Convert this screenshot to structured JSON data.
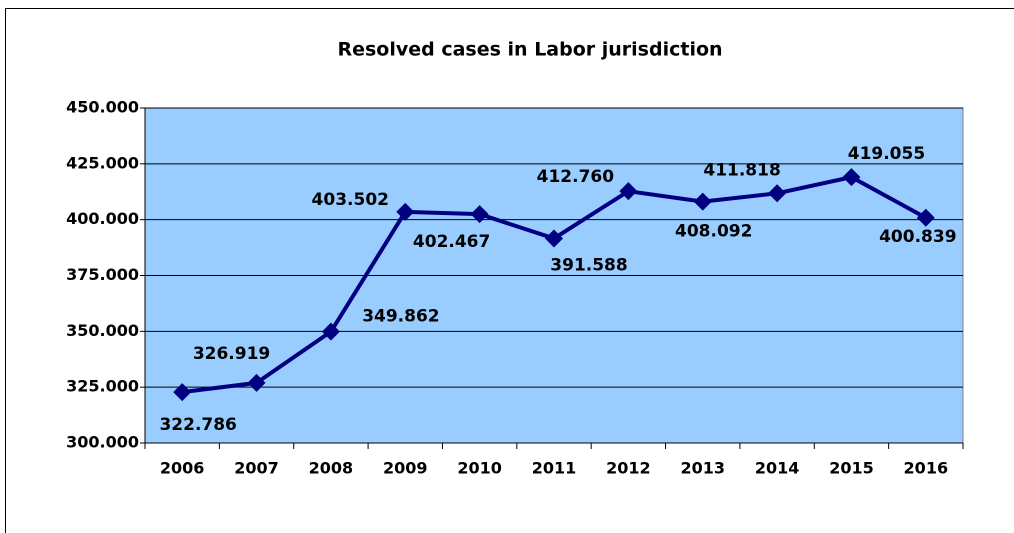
{
  "chart_data": {
    "type": "line",
    "title": "Resolved cases in Labor jurisdiction",
    "categories": [
      "2006",
      "2007",
      "2008",
      "2009",
      "2010",
      "2011",
      "2012",
      "2013",
      "2014",
      "2015",
      "2016"
    ],
    "series": [
      {
        "name": "Resolved cases",
        "color": "#000080",
        "values": [
          322786,
          326919,
          349862,
          403502,
          402467,
          391588,
          412760,
          408092,
          411818,
          419055,
          400839
        ],
        "value_labels": [
          "322.786",
          "326.919",
          "349.862",
          "403.502",
          "402.467",
          "391.588",
          "412.760",
          "408.092",
          "411.818",
          "419.055",
          "400.839"
        ]
      }
    ],
    "ylim": [
      300000,
      450000
    ],
    "yticks": [
      {
        "value": 300000,
        "label": "300.000"
      },
      {
        "value": 325000,
        "label": "325.000"
      },
      {
        "value": 350000,
        "label": "350.000"
      },
      {
        "value": 375000,
        "label": "375.000"
      },
      {
        "value": 400000,
        "label": "400.000"
      },
      {
        "value": 425000,
        "label": "425.000"
      },
      {
        "value": 450000,
        "label": "450.000"
      }
    ],
    "grid": true,
    "plot_background": "#99ccff"
  }
}
